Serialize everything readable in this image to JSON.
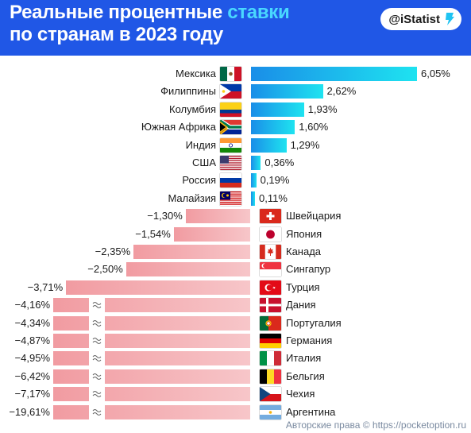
{
  "header": {
    "title_line1_prefix": "Реальные процентные",
    "title_line1_accent": "ставки",
    "title_line2": "по странам в 2023 году",
    "brand": "@iStatist"
  },
  "footer": {
    "copyright": "Авторские права © https://pocketoption.ru"
  },
  "colors": {
    "header_bg": "#2057e6",
    "accent": "#49d8ff",
    "positive_bar": "#1ee3f0",
    "negative_bar": "#f19ba1"
  },
  "chart_data": {
    "type": "bar",
    "orientation": "horizontal",
    "title": "Реальные процентные ставки по странам в 2023 году",
    "unit": "%",
    "axis_break_on_last_bar": true,
    "categories": [
      "Мексика",
      "Филиппины",
      "Колумбия",
      "Южная Африка",
      "Индия",
      "США",
      "Россия",
      "Малайзия",
      "Швейцария",
      "Япония",
      "Канада",
      "Сингапур",
      "Турция",
      "Дания",
      "Португалия",
      "Германия",
      "Италия",
      "Бельгия",
      "Чехия",
      "Аргентина"
    ],
    "values": [
      6.05,
      2.62,
      1.93,
      1.6,
      1.29,
      0.36,
      0.19,
      0.11,
      -1.3,
      -1.54,
      -2.35,
      -2.5,
      -3.71,
      -4.16,
      -4.34,
      -4.87,
      -4.95,
      -6.42,
      -7.17,
      -19.61
    ],
    "labels": [
      "6,05%",
      "2,62%",
      "1,93%",
      "1,60%",
      "1,29%",
      "0,36%",
      "0,19%",
      "0,11%",
      "−1,30%",
      "−1,54%",
      "−2,35%",
      "−2,50%",
      "−3,71%",
      "−4,16%",
      "−4,34%",
      "−4,87%",
      "−4,95%",
      "−6,42%",
      "−7,17%",
      "−19,61%"
    ],
    "flags": [
      "mexico-flag-icon",
      "philippines-flag-icon",
      "colombia-flag-icon",
      "south-africa-flag-icon",
      "india-flag-icon",
      "usa-flag-icon",
      "russia-flag-icon",
      "malaysia-flag-icon",
      "switzerland-flag-icon",
      "japan-flag-icon",
      "canada-flag-icon",
      "singapore-flag-icon",
      "turkey-flag-icon",
      "denmark-flag-icon",
      "portugal-flag-icon",
      "germany-flag-icon",
      "italy-flag-icon",
      "belgium-flag-icon",
      "czechia-flag-icon",
      "argentina-flag-icon"
    ]
  }
}
